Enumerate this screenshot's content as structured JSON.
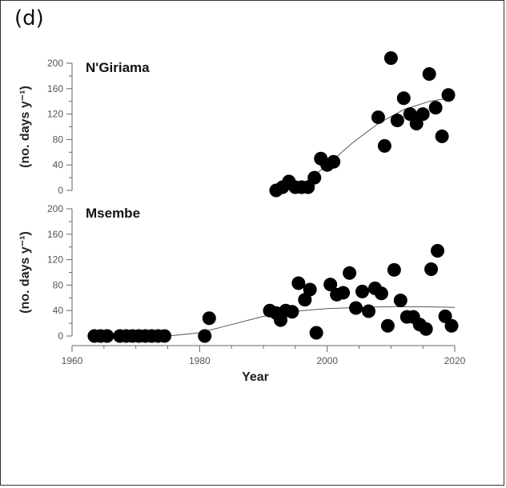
{
  "panel_label": "(d)",
  "chart_data": [
    {
      "type": "scatter",
      "title": "N'Giriama",
      "xlabel": "Year",
      "ylabel": "(no. days y⁻¹)",
      "xlim": [
        1960,
        2020
      ],
      "ylim": [
        0,
        200
      ],
      "yticks": [
        0,
        40,
        80,
        120,
        160,
        200
      ],
      "points": [
        [
          1992,
          0
        ],
        [
          1993,
          5
        ],
        [
          1994,
          14
        ],
        [
          1995,
          5
        ],
        [
          1996,
          5
        ],
        [
          1997,
          5
        ],
        [
          1998,
          20
        ],
        [
          1999,
          50
        ],
        [
          2000,
          40
        ],
        [
          2001,
          45
        ],
        [
          2008,
          115
        ],
        [
          2009,
          70
        ],
        [
          2010,
          208
        ],
        [
          2011,
          110
        ],
        [
          2012,
          145
        ],
        [
          2013,
          120
        ],
        [
          2014,
          105
        ],
        [
          2015,
          120
        ],
        [
          2016,
          183
        ],
        [
          2017,
          130
        ],
        [
          2018,
          85
        ],
        [
          2019,
          150
        ]
      ],
      "fit": [
        [
          1992,
          0
        ],
        [
          1996,
          8
        ],
        [
          2000,
          40
        ],
        [
          2004,
          75
        ],
        [
          2008,
          105
        ],
        [
          2012,
          127
        ],
        [
          2016,
          140
        ],
        [
          2019,
          145
        ]
      ]
    },
    {
      "type": "scatter",
      "title": "Msembe",
      "xlabel": "Year",
      "ylabel": "(no. days y⁻¹)",
      "xlim": [
        1960,
        2020
      ],
      "ylim": [
        0,
        200
      ],
      "yticks": [
        0,
        40,
        80,
        120,
        160,
        200
      ],
      "xticks": [
        1960,
        1980,
        2000,
        2020
      ],
      "points": [
        [
          1963.5,
          0
        ],
        [
          1964.5,
          0
        ],
        [
          1965.5,
          0
        ],
        [
          1967.5,
          0
        ],
        [
          1968.5,
          0
        ],
        [
          1969.5,
          0
        ],
        [
          1970.5,
          0
        ],
        [
          1971.5,
          0
        ],
        [
          1972.5,
          0
        ],
        [
          1973.5,
          0
        ],
        [
          1974.5,
          0
        ],
        [
          1980.8,
          0
        ],
        [
          1981.5,
          28
        ],
        [
          1991,
          40
        ],
        [
          1992,
          36
        ],
        [
          1992.7,
          25
        ],
        [
          1993.5,
          40
        ],
        [
          1994.5,
          38
        ],
        [
          1995.5,
          83
        ],
        [
          1996.5,
          57
        ],
        [
          1997.3,
          73
        ],
        [
          1998.3,
          5
        ],
        [
          2000.5,
          81
        ],
        [
          2001.5,
          65
        ],
        [
          2002.5,
          68
        ],
        [
          2003.5,
          99
        ],
        [
          2004.5,
          44
        ],
        [
          2005.5,
          70
        ],
        [
          2006.5,
          39
        ],
        [
          2007.5,
          75
        ],
        [
          2008.5,
          67
        ],
        [
          2009.5,
          16
        ],
        [
          2010.5,
          104
        ],
        [
          2011.5,
          56
        ],
        [
          2012.5,
          30
        ],
        [
          2013.5,
          30
        ],
        [
          2014.5,
          18
        ],
        [
          2015.5,
          11
        ],
        [
          2016.3,
          105
        ],
        [
          2017.3,
          134
        ],
        [
          2018.5,
          31
        ],
        [
          2019.5,
          16
        ]
      ],
      "fit": [
        [
          1975,
          0
        ],
        [
          1980,
          5
        ],
        [
          1985,
          18
        ],
        [
          1990,
          31
        ],
        [
          1995,
          39
        ],
        [
          2000,
          43
        ],
        [
          2005,
          45
        ],
        [
          2010,
          46
        ],
        [
          2015,
          46
        ],
        [
          2020,
          45
        ]
      ]
    }
  ]
}
